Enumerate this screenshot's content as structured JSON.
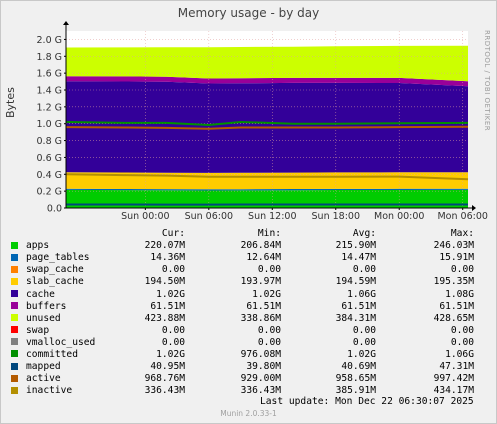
{
  "title": "Memory usage - by day",
  "ylabel": "Bytes",
  "sideways_text": "RRDTOOL / TOBI OETIKER",
  "footer": "Munin 2.0.33-1",
  "last_update": "Last update:  Mon Dec 22 06:30:07 2025",
  "legend_header": {
    "cur": "Cur:",
    "min": "Min:",
    "avg": "Avg:",
    "max": "Max:"
  },
  "legend": [
    {
      "name": "apps",
      "color": "#00cc00",
      "cur": "220.07M",
      "min": "206.84M",
      "avg": "215.90M",
      "max": "246.03M"
    },
    {
      "name": "page_tables",
      "color": "#0066b3",
      "cur": "14.36M",
      "min": "12.64M",
      "avg": "14.47M",
      "max": "15.91M"
    },
    {
      "name": "swap_cache",
      "color": "#ff8000",
      "cur": "0.00",
      "min": "0.00",
      "avg": "0.00",
      "max": "0.00"
    },
    {
      "name": "slab_cache",
      "color": "#ffcc00",
      "cur": "194.50M",
      "min": "193.97M",
      "avg": "194.59M",
      "max": "195.35M"
    },
    {
      "name": "cache",
      "color": "#330099",
      "cur": "1.02G",
      "min": "1.02G",
      "avg": "1.06G",
      "max": "1.08G"
    },
    {
      "name": "buffers",
      "color": "#990099",
      "cur": "61.51M",
      "min": "61.51M",
      "avg": "61.51M",
      "max": "61.51M"
    },
    {
      "name": "unused",
      "color": "#ccff00",
      "cur": "423.88M",
      "min": "338.86M",
      "avg": "384.31M",
      "max": "428.65M"
    },
    {
      "name": "swap",
      "color": "#ff0000",
      "cur": "0.00",
      "min": "0.00",
      "avg": "0.00",
      "max": "0.00"
    },
    {
      "name": "vmalloc_used",
      "color": "#808080",
      "cur": "0.00",
      "min": "0.00",
      "avg": "0.00",
      "max": "0.00"
    },
    {
      "name": "committed",
      "color": "#008f00",
      "cur": "1.02G",
      "min": "976.08M",
      "avg": "1.02G",
      "max": "1.06G"
    },
    {
      "name": "mapped",
      "color": "#00487d",
      "cur": "40.95M",
      "min": "39.80M",
      "avg": "40.69M",
      "max": "47.31M"
    },
    {
      "name": "active",
      "color": "#b35a00",
      "cur": "968.76M",
      "min": "929.00M",
      "avg": "958.65M",
      "max": "997.42M"
    },
    {
      "name": "inactive",
      "color": "#b38f00",
      "cur": "336.43M",
      "min": "336.43M",
      "avg": "385.91M",
      "max": "434.17M"
    }
  ],
  "chart_data": {
    "type": "area",
    "title": "Memory usage - by day",
    "ylabel": "Bytes",
    "ylim": [
      0,
      2.1
    ],
    "yticks": [
      "0.0",
      "0.2 G",
      "0.4 G",
      "0.6 G",
      "0.8 G",
      "1.0 G",
      "1.2 G",
      "1.4 G",
      "1.6 G",
      "1.8 G",
      "2.0 G"
    ],
    "ytick_values": [
      0,
      0.2,
      0.4,
      0.6,
      0.8,
      1.0,
      1.2,
      1.4,
      1.6,
      1.8,
      2.0
    ],
    "x_unit": "hours",
    "xlim": [
      -7.5,
      30.5
    ],
    "xticks": [
      "Sun 00:00",
      "Sun 06:00",
      "Sun 12:00",
      "Sun 18:00",
      "Mon 00:00",
      "Mon 06:00"
    ],
    "xtick_values": [
      0,
      6,
      12,
      18,
      24,
      30
    ],
    "grid": true,
    "stack_order": [
      "apps",
      "page_tables",
      "swap_cache",
      "slab_cache",
      "cache",
      "buffers",
      "unused",
      "swap",
      "vmalloc_used"
    ],
    "x": [
      -7.5,
      -2,
      2,
      6,
      9,
      14,
      18,
      24,
      30.5
    ],
    "stacked": {
      "apps": [
        0.215,
        0.212,
        0.21,
        0.208,
        0.209,
        0.211,
        0.213,
        0.214,
        0.215
      ],
      "page_tables": [
        0.014,
        0.014,
        0.014,
        0.014,
        0.014,
        0.014,
        0.014,
        0.014,
        0.014
      ],
      "swap_cache": [
        0,
        0,
        0,
        0,
        0,
        0,
        0,
        0,
        0
      ],
      "slab_cache": [
        0.195,
        0.195,
        0.195,
        0.195,
        0.195,
        0.195,
        0.195,
        0.195,
        0.195
      ],
      "cache": [
        1.08,
        1.08,
        1.078,
        1.06,
        1.062,
        1.064,
        1.062,
        1.06,
        1.02
      ],
      "buffers": [
        0.06,
        0.06,
        0.06,
        0.06,
        0.06,
        0.06,
        0.06,
        0.06,
        0.06
      ],
      "unused": [
        0.34,
        0.345,
        0.35,
        0.37,
        0.37,
        0.37,
        0.375,
        0.38,
        0.42
      ],
      "swap": [
        0,
        0,
        0,
        0,
        0,
        0,
        0,
        0,
        0
      ],
      "vmalloc_used": [
        0,
        0,
        0,
        0,
        0,
        0,
        0,
        0,
        0
      ]
    },
    "lines": {
      "committed": [
        1.02,
        1.01,
        1.01,
        0.985,
        1.02,
        1.0,
        1.0,
        1.005,
        1.01
      ],
      "mapped": [
        0.041,
        0.041,
        0.04,
        0.04,
        0.041,
        0.041,
        0.041,
        0.041,
        0.041
      ],
      "active": [
        0.96,
        0.955,
        0.95,
        0.94,
        0.955,
        0.955,
        0.955,
        0.96,
        0.965
      ],
      "inactive": [
        0.4,
        0.39,
        0.385,
        0.37,
        0.37,
        0.37,
        0.37,
        0.372,
        0.34
      ]
    }
  }
}
